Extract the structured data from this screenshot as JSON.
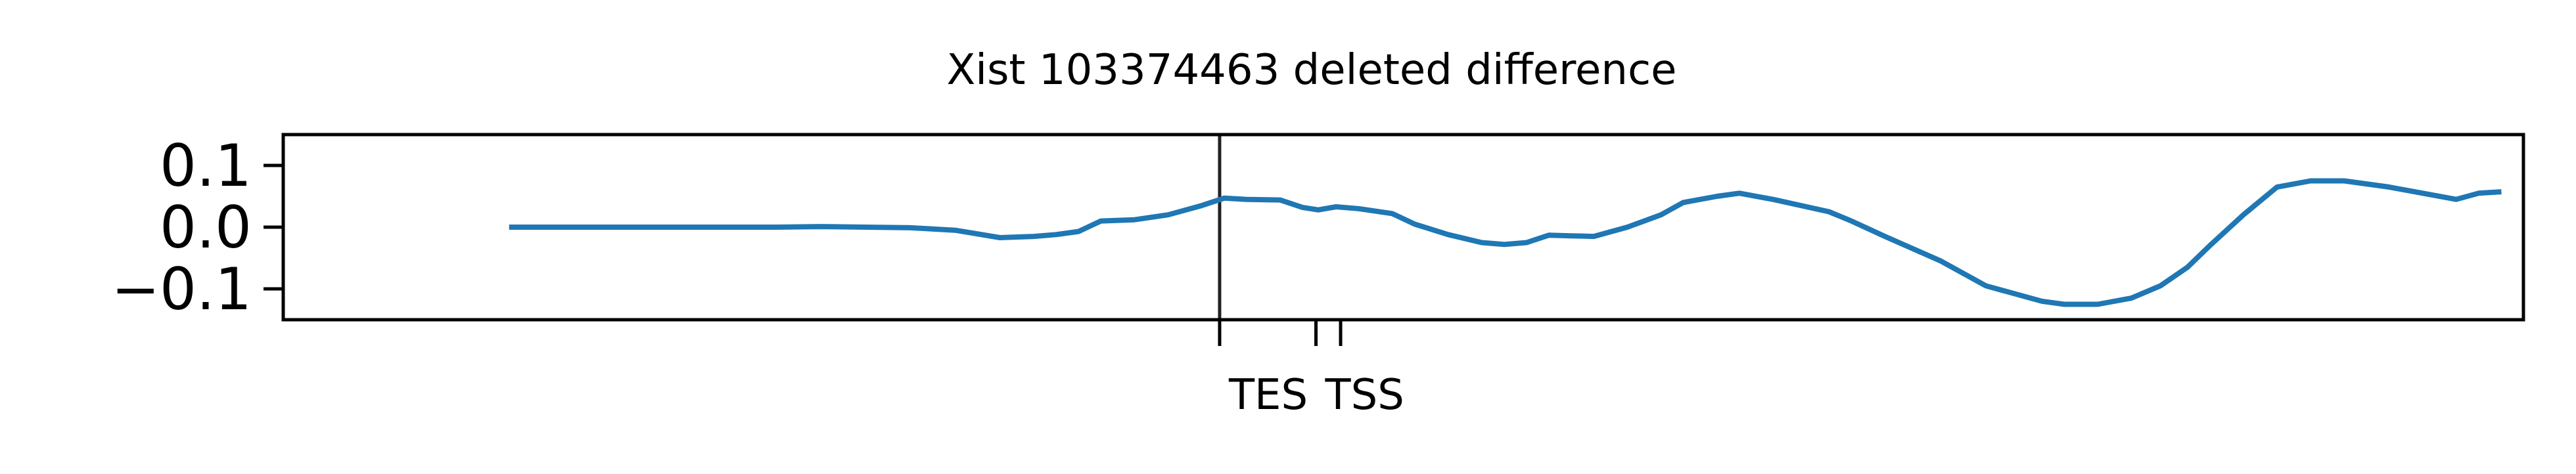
{
  "chart_data": {
    "type": "line",
    "title": "Xist 103374463 deleted difference",
    "xlabel": "",
    "ylabel": "",
    "xlim": [
      0,
      1000
    ],
    "ylim": [
      -0.15,
      0.15
    ],
    "yticks": [
      0.1,
      0.0,
      -0.1
    ],
    "ytick_labels": [
      "0.1",
      "0.0",
      "−0.1"
    ],
    "xticks": [
      {
        "x": 418,
        "label": "TES"
      },
      {
        "x": 461,
        "label": "TSS"
      },
      {
        "x": 472,
        "label": ""
      }
    ],
    "vline_x": 418,
    "grid": false,
    "series": [
      {
        "color": "#1f77b4",
        "x": [
          102,
          120,
          160,
          200,
          220,
          240,
          260,
          280,
          300,
          320,
          335,
          345,
          355,
          365,
          380,
          395,
          410,
          420,
          430,
          445,
          455,
          462,
          470,
          480,
          495,
          505,
          520,
          535,
          545,
          555,
          565,
          575,
          585,
          600,
          615,
          625,
          640,
          650,
          665,
          690,
          700,
          715,
          740,
          760,
          785,
          795,
          810,
          825,
          838,
          850,
          860,
          875,
          890,
          905,
          920,
          940,
          955,
          970,
          980,
          989
        ],
        "values": [
          0.0,
          0.0,
          0.0,
          0.0,
          0.0,
          0.001,
          0.0,
          -0.001,
          -0.005,
          -0.017,
          -0.015,
          -0.012,
          -0.007,
          0.01,
          0.012,
          0.02,
          0.035,
          0.047,
          0.045,
          0.044,
          0.032,
          0.028,
          0.033,
          0.03,
          0.022,
          0.005,
          -0.012,
          -0.025,
          -0.028,
          -0.025,
          -0.013,
          -0.014,
          -0.015,
          0.0,
          0.02,
          0.04,
          0.05,
          0.055,
          0.045,
          0.025,
          0.01,
          -0.015,
          -0.055,
          -0.095,
          -0.12,
          -0.125,
          -0.125,
          -0.115,
          -0.095,
          -0.065,
          -0.03,
          0.02,
          0.065,
          0.075,
          0.075,
          0.065,
          0.055,
          0.045,
          0.055,
          0.057
        ]
      }
    ]
  }
}
